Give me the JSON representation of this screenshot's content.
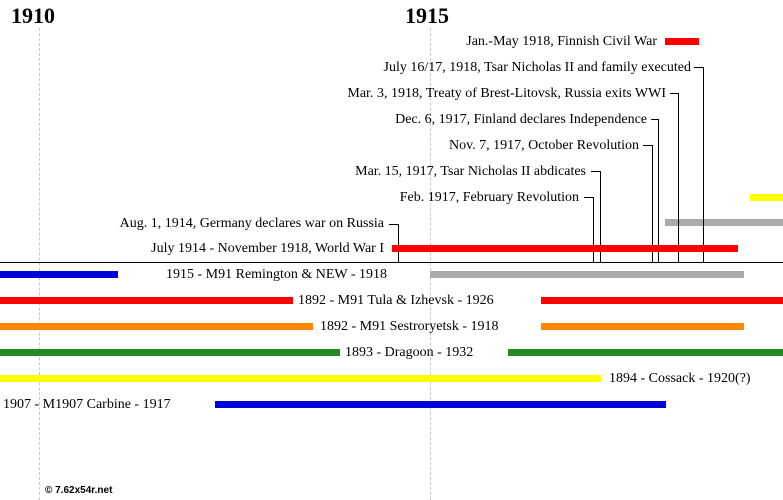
{
  "colors": {
    "red": "#ff0000",
    "blue": "#0000dd",
    "gray": "#aaaaaa",
    "orange": "#ff8800",
    "green": "#228b22",
    "yellow": "#ffff00"
  },
  "years": [
    "1910",
    "1915"
  ],
  "events": [
    {
      "label": "Jan.-May 1918, Finnish Civil War"
    },
    {
      "label": "July 16/17, 1918, Tsar Nicholas II and family executed"
    },
    {
      "label": "Mar. 3, 1918, Treaty of Brest-Litovsk, Russia exits WWI"
    },
    {
      "label": "Dec. 6, 1917, Finland declares Independence"
    },
    {
      "label": "Nov. 7, 1917, October Revolution"
    },
    {
      "label": "Mar. 15, 1917, Tsar Nicholas II abdicates"
    },
    {
      "label": "Feb. 1917, February Revolution"
    },
    {
      "label": "Aug. 1, 1914, Germany declares war on Russia"
    },
    {
      "label": "July 1914 - November 1918, World War I"
    }
  ],
  "rifles": [
    {
      "label": "1915 - M91 Remington & NEW - 1918"
    },
    {
      "label": "1892 - M91 Tula & Izhevsk - 1926"
    },
    {
      "label": "1892 - M91 Sestroryetsk - 1918"
    },
    {
      "label": "1893 - Dragoon - 1932"
    },
    {
      "label": "1894 - Cossack - 1920(?)"
    },
    {
      "label": "1907 - M1907 Carbine - 1917"
    }
  ],
  "footer": {
    "copyright": "© 7.62x54r.net"
  }
}
